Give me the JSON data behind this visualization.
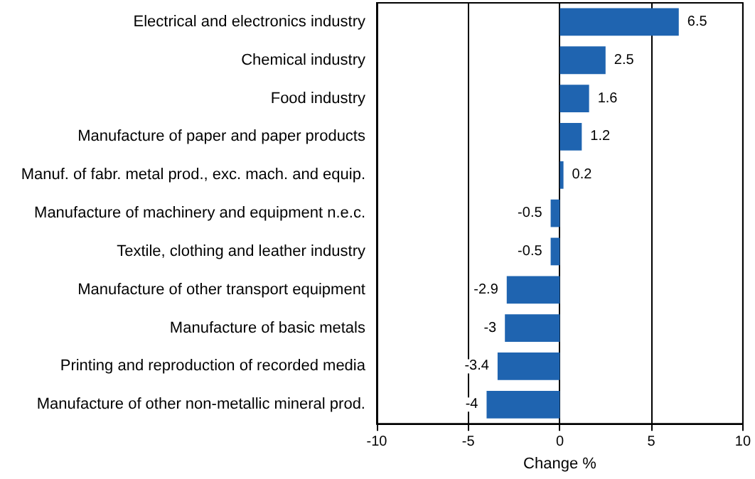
{
  "chart_data": {
    "type": "bar",
    "orientation": "horizontal",
    "xlabel": "Change %",
    "categories": [
      "Electrical and electronics industry",
      "Chemical industry",
      "Food industry",
      "Manufacture of paper and paper products",
      "Manuf. of fabr. metal prod., exc. mach. and equip.",
      "Manufacture of machinery and equipment n.e.c.",
      "Textile, clothing and leather industry",
      "Manufacture of other transport equipment",
      "Manufacture of basic metals",
      "Printing and reproduction of recorded media",
      "Manufacture of other non-metallic mineral prod."
    ],
    "values": [
      6.5,
      2.5,
      1.6,
      1.2,
      0.2,
      -0.5,
      -0.5,
      -2.9,
      -3,
      -3.4,
      -4
    ],
    "color": "#1f64b0",
    "xlim": [
      -10,
      10
    ],
    "xticks": [
      -10,
      -5,
      0,
      5,
      10
    ],
    "grid": "x",
    "data_labels": true
  }
}
